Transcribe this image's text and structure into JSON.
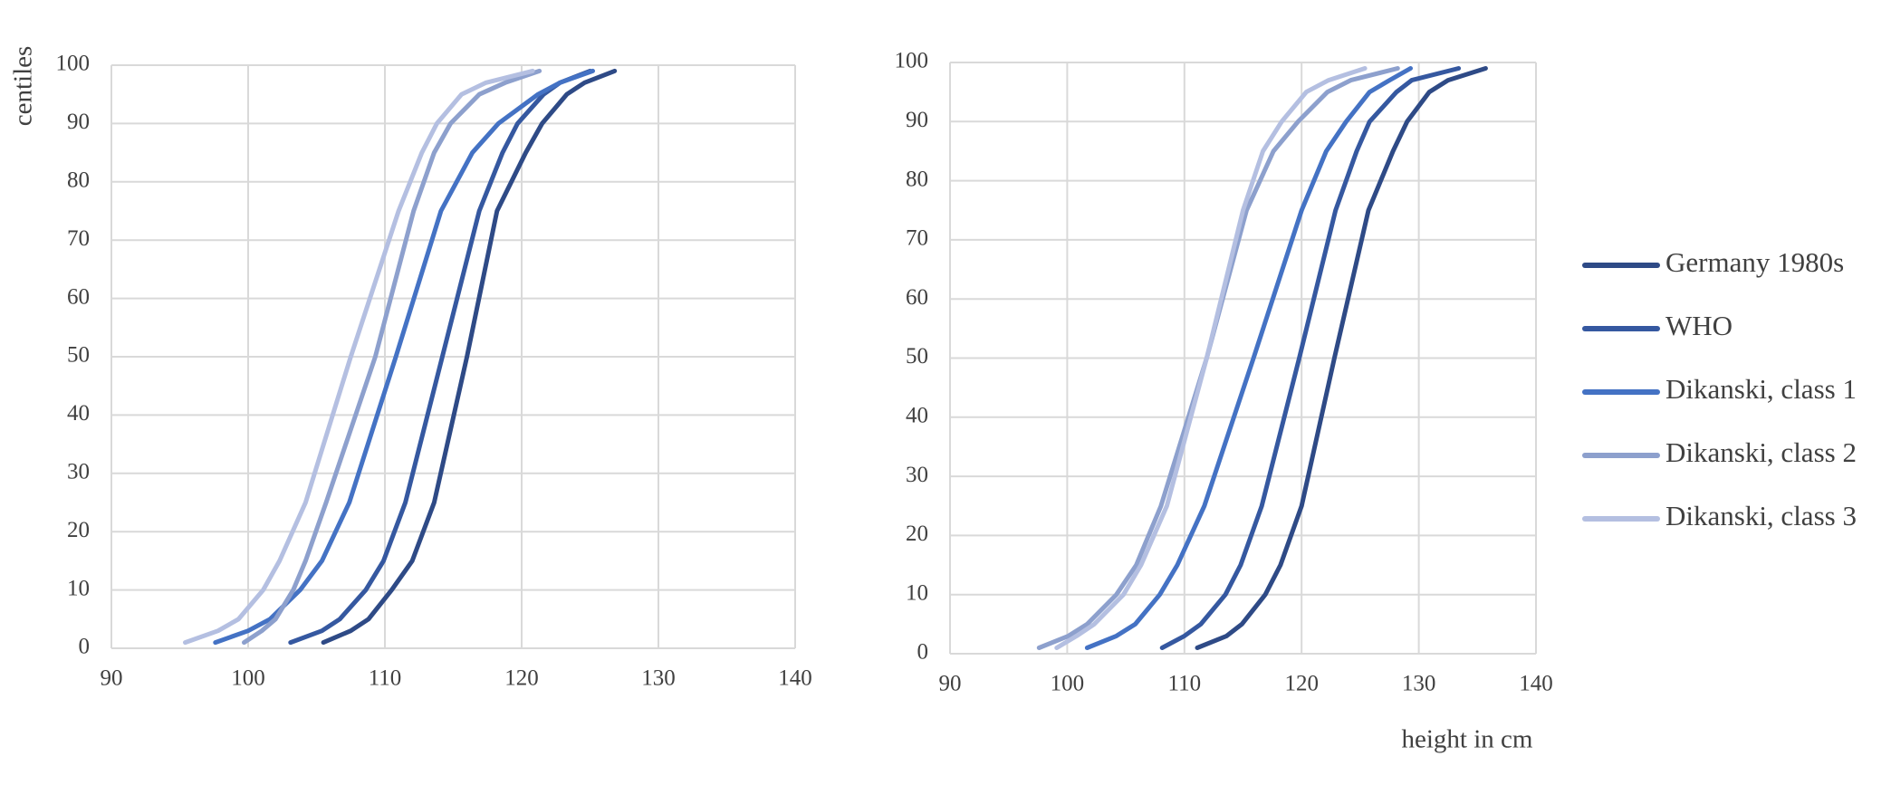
{
  "chart_data": [
    {
      "type": "line",
      "ylabel": "centiles",
      "xlabel": "",
      "xlim": [
        90,
        140
      ],
      "ylim": [
        0,
        100
      ],
      "xticks": [
        90,
        100,
        110,
        120,
        130,
        140
      ],
      "yticks": [
        0,
        10,
        20,
        30,
        40,
        50,
        60,
        70,
        80,
        90,
        100
      ],
      "grid": true,
      "series": [
        {
          "name": "Germany 1980s",
          "color": "#2e4a86",
          "points": [
            [
              105.5,
              1
            ],
            [
              107.5,
              3
            ],
            [
              108.8,
              5
            ],
            [
              110.5,
              10
            ],
            [
              112,
              15
            ],
            [
              113.6,
              25
            ],
            [
              116,
              50
            ],
            [
              118.2,
              75
            ],
            [
              120.3,
              85
            ],
            [
              121.5,
              90
            ],
            [
              123.3,
              95
            ],
            [
              124.6,
              97
            ],
            [
              126.8,
              99
            ]
          ]
        },
        {
          "name": "WHO",
          "color": "#3558a0",
          "points": [
            [
              103.1,
              1
            ],
            [
              105.4,
              3
            ],
            [
              106.7,
              5
            ],
            [
              108.6,
              10
            ],
            [
              109.9,
              15
            ],
            [
              111.5,
              25
            ],
            [
              114.2,
              50
            ],
            [
              116.9,
              75
            ],
            [
              118.6,
              85
            ],
            [
              119.7,
              90
            ],
            [
              121.6,
              95
            ],
            [
              122.8,
              97
            ],
            [
              125,
              99
            ]
          ]
        },
        {
          "name": "Dikanski, class 1",
          "color": "#4472c4",
          "points": [
            [
              97.6,
              1
            ],
            [
              100,
              3
            ],
            [
              101.6,
              5
            ],
            [
              103.8,
              10
            ],
            [
              105.4,
              15
            ],
            [
              107.4,
              25
            ],
            [
              110.8,
              50
            ],
            [
              114.1,
              75
            ],
            [
              116.4,
              85
            ],
            [
              118.3,
              90
            ],
            [
              121.2,
              95
            ],
            [
              122.8,
              97
            ],
            [
              125.2,
              99
            ]
          ]
        },
        {
          "name": "Dikanski, class 2",
          "color": "#8da0cd",
          "points": [
            [
              99.7,
              1
            ],
            [
              101,
              3
            ],
            [
              102,
              5
            ],
            [
              103.3,
              10
            ],
            [
              104.2,
              15
            ],
            [
              105.7,
              25
            ],
            [
              109.3,
              50
            ],
            [
              112.1,
              75
            ],
            [
              113.6,
              85
            ],
            [
              114.8,
              90
            ],
            [
              116.9,
              95
            ],
            [
              118.8,
              97
            ],
            [
              121.3,
              99
            ]
          ]
        },
        {
          "name": "Dikanski, class 3",
          "color": "#b4bfe1",
          "points": [
            [
              95.4,
              1
            ],
            [
              97.8,
              3
            ],
            [
              99.3,
              5
            ],
            [
              101.1,
              10
            ],
            [
              102.3,
              15
            ],
            [
              104.2,
              25
            ],
            [
              107.5,
              50
            ],
            [
              111,
              75
            ],
            [
              112.7,
              85
            ],
            [
              113.8,
              90
            ],
            [
              115.6,
              95
            ],
            [
              117.4,
              97
            ],
            [
              120.8,
              99
            ]
          ]
        }
      ]
    },
    {
      "type": "line",
      "ylabel": "",
      "xlabel": "height in cm",
      "xlim": [
        90,
        140
      ],
      "ylim": [
        0,
        100
      ],
      "xticks": [
        90,
        100,
        110,
        120,
        130,
        140
      ],
      "yticks": [
        0,
        10,
        20,
        30,
        40,
        50,
        60,
        70,
        80,
        90,
        100
      ],
      "grid": true,
      "legend_position": "right",
      "series": [
        {
          "name": "Germany 1980s",
          "color": "#2e4a86",
          "points": [
            [
              111.1,
              1
            ],
            [
              113.6,
              3
            ],
            [
              114.9,
              5
            ],
            [
              116.9,
              10
            ],
            [
              118.2,
              15
            ],
            [
              120,
              25
            ],
            [
              122.8,
              50
            ],
            [
              125.7,
              75
            ],
            [
              127.8,
              85
            ],
            [
              129,
              90
            ],
            [
              130.9,
              95
            ],
            [
              132.5,
              97
            ],
            [
              135.7,
              99
            ]
          ]
        },
        {
          "name": "WHO",
          "color": "#3558a0",
          "points": [
            [
              108.1,
              1
            ],
            [
              110,
              3
            ],
            [
              111.4,
              5
            ],
            [
              113.5,
              10
            ],
            [
              114.8,
              15
            ],
            [
              116.6,
              25
            ],
            [
              119.8,
              50
            ],
            [
              122.9,
              75
            ],
            [
              124.7,
              85
            ],
            [
              125.8,
              90
            ],
            [
              128.1,
              95
            ],
            [
              129.4,
              97
            ],
            [
              133.4,
              99
            ]
          ]
        },
        {
          "name": "Dikanski, class 1",
          "color": "#4472c4",
          "points": [
            [
              101.7,
              1
            ],
            [
              104.2,
              3
            ],
            [
              105.8,
              5
            ],
            [
              107.9,
              10
            ],
            [
              109.4,
              15
            ],
            [
              111.7,
              25
            ],
            [
              115.9,
              50
            ],
            [
              120,
              75
            ],
            [
              122.1,
              85
            ],
            [
              123.8,
              90
            ],
            [
              125.8,
              95
            ],
            [
              127.5,
              97
            ],
            [
              129.3,
              99
            ]
          ]
        },
        {
          "name": "Dikanski, class 2",
          "color": "#8da0cd",
          "points": [
            [
              97.6,
              1
            ],
            [
              100.1,
              3
            ],
            [
              101.7,
              5
            ],
            [
              104.2,
              10
            ],
            [
              105.9,
              15
            ],
            [
              108,
              25
            ],
            [
              111.9,
              50
            ],
            [
              115.3,
              75
            ],
            [
              117.6,
              85
            ],
            [
              119.7,
              90
            ],
            [
              122.2,
              95
            ],
            [
              124.2,
              97
            ],
            [
              128.2,
              99
            ]
          ]
        },
        {
          "name": "Dikanski, class 3",
          "color": "#b4bfe1",
          "points": [
            [
              99.1,
              1
            ],
            [
              100.8,
              3
            ],
            [
              102.3,
              5
            ],
            [
              104.8,
              10
            ],
            [
              106.3,
              15
            ],
            [
              108.5,
              25
            ],
            [
              111.9,
              50
            ],
            [
              115,
              75
            ],
            [
              116.7,
              85
            ],
            [
              118.3,
              90
            ],
            [
              120.4,
              95
            ],
            [
              122.3,
              97
            ],
            [
              125.4,
              99
            ]
          ]
        }
      ]
    }
  ]
}
